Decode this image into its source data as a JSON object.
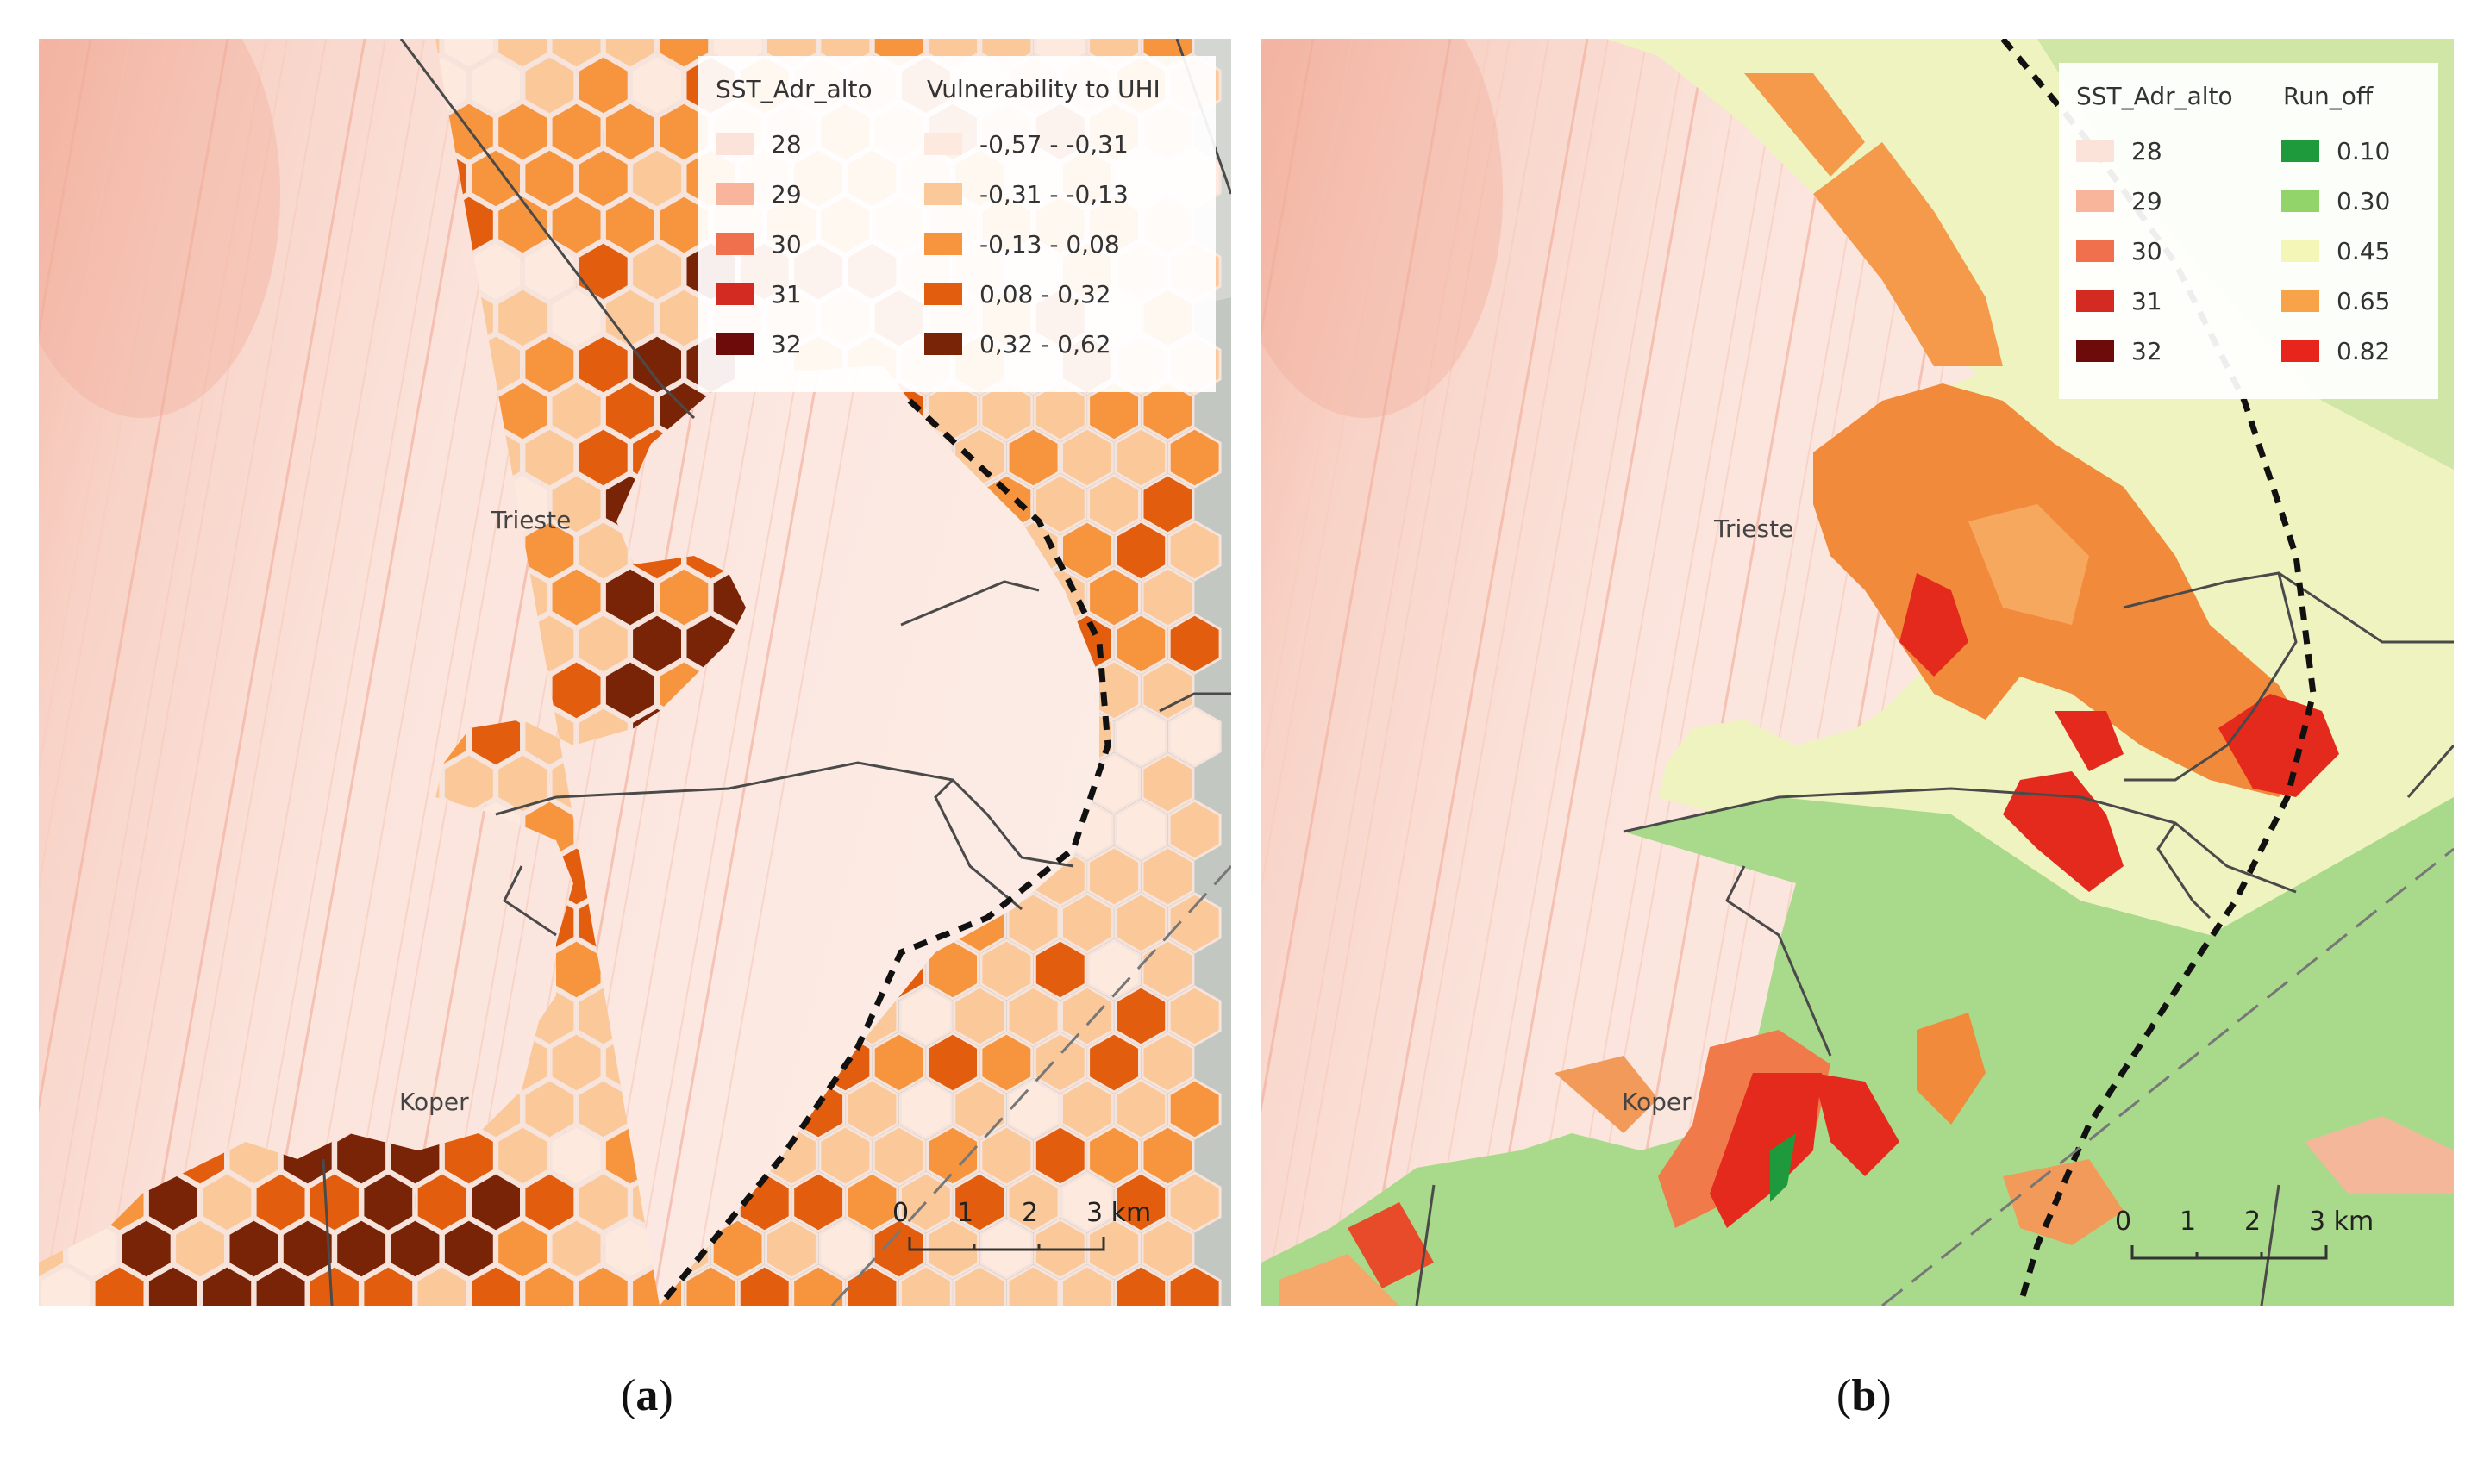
{
  "panels": {
    "a": {
      "caption_open": "(",
      "caption_letter": "a",
      "caption_close": ")",
      "legend": {
        "sst_header": "SST_Adr_alto",
        "second_header": "Vulnerability to UHI",
        "sst_entries": [
          {
            "label": "28",
            "color": "#fbe3da"
          },
          {
            "label": "29",
            "color": "#f8b59c"
          },
          {
            "label": "30",
            "color": "#f0704e"
          },
          {
            "label": "31",
            "color": "#d32a21"
          },
          {
            "label": "32",
            "color": "#6d0b0b"
          }
        ],
        "second_entries": [
          {
            "label": "-0,57 - -0,31",
            "color": "#fde9de"
          },
          {
            "label": "-0,31 - -0,13",
            "color": "#fbc89a"
          },
          {
            "label": "-0,13 - 0,08",
            "color": "#f7953f"
          },
          {
            "label": "0,08 - 0,32",
            "color": "#e35d0e"
          },
          {
            "label": "0,32 - 0,62",
            "color": "#7a2407"
          }
        ]
      },
      "places": {
        "trieste": "Trieste",
        "koper": "Koper"
      },
      "scale": {
        "n0": "0",
        "n1": "1",
        "n2": "2",
        "n3": "3 km"
      }
    },
    "b": {
      "caption_open": "(",
      "caption_letter": "b",
      "caption_close": ")",
      "legend": {
        "sst_header": "SST_Adr_alto",
        "second_header": "Run_off",
        "sst_entries": [
          {
            "label": "28",
            "color": "#fbe3da"
          },
          {
            "label": "29",
            "color": "#f8b59c"
          },
          {
            "label": "30",
            "color": "#f0704e"
          },
          {
            "label": "31",
            "color": "#d32a21"
          },
          {
            "label": "32",
            "color": "#6d0b0b"
          }
        ],
        "second_entries": [
          {
            "label": "0.10",
            "color": "#1e9a3c"
          },
          {
            "label": "0.30",
            "color": "#92d36a"
          },
          {
            "label": "0.45",
            "color": "#f4f6b8"
          },
          {
            "label": "0.65",
            "color": "#f8a24a"
          },
          {
            "label": "0.82",
            "color": "#e8251c"
          }
        ]
      },
      "places": {
        "trieste": "Trieste",
        "koper": "Koper"
      },
      "scale": {
        "n0": "0",
        "n1": "1",
        "n2": "2",
        "n3": "3 km"
      }
    }
  },
  "colors": {
    "sea": "#fbe6e0",
    "sea_warm": "#f6c3b4",
    "land_grey": "#c4c8c4",
    "hex_stroke": "#f6e4dc",
    "runoff_green": "#a9d98a",
    "runoff_yellow": "#eef3bf",
    "runoff_orange": "#f28a3c",
    "runoff_red": "#e32a1c",
    "boundary": "#4a4a4a"
  }
}
